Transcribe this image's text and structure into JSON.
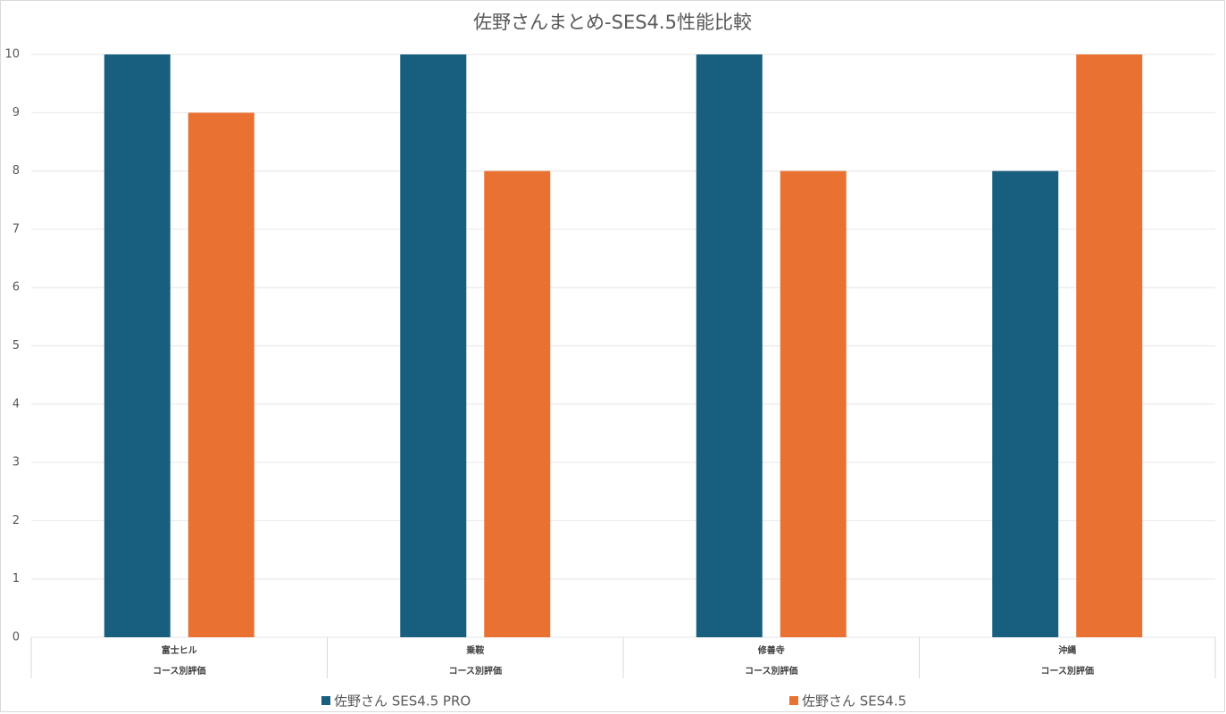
{
  "chart_data": {
    "type": "bar",
    "title": "佐野さんまとめ-SES4.5性能比較",
    "categories": [
      "富士ヒル",
      "乗鞍",
      "修善寺",
      "沖縄"
    ],
    "category_groups": [
      "コース別評価",
      "コース別評価",
      "コース別評価",
      "コース別評価"
    ],
    "series": [
      {
        "name": "佐野さん SES4.5 PRO",
        "color": "#175e7f",
        "values": [
          10,
          10,
          10,
          8
        ]
      },
      {
        "name": "佐野さん SES4.5",
        "color": "#e97132",
        "values": [
          9,
          8,
          8,
          10
        ]
      }
    ],
    "ylim": [
      0,
      10
    ],
    "yticks": [
      0,
      1,
      2,
      3,
      4,
      5,
      6,
      7,
      8,
      9,
      10
    ],
    "grid": true,
    "legend": "bottom"
  }
}
